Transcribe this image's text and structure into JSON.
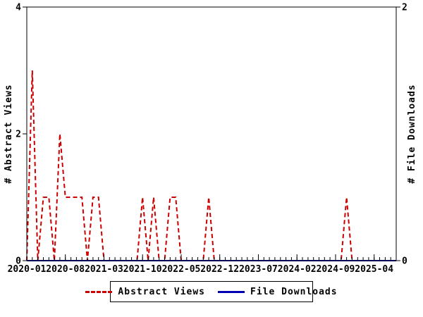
{
  "chart_data": {
    "type": "line",
    "title": "",
    "background": "#ffffff",
    "axis_color": "#000000",
    "x_axis": {
      "months_total": 68,
      "start_label": "2020-01",
      "labels": [
        {
          "label": "2020-01",
          "month": 0
        },
        {
          "label": "2020-08",
          "month": 7
        },
        {
          "label": "2021-03",
          "month": 14
        },
        {
          "label": "2021-10",
          "month": 21
        },
        {
          "label": "2022-05",
          "month": 28
        },
        {
          "label": "2022-12",
          "month": 35
        },
        {
          "label": "2023-07",
          "month": 42
        },
        {
          "label": "2024-02",
          "month": 49
        },
        {
          "label": "2024-09",
          "month": 56
        },
        {
          "label": "2025-04",
          "month": 63
        }
      ]
    },
    "left_axis": {
      "label": "# Abstract Views",
      "min": 0,
      "max": 4,
      "ticks": [
        {
          "label": "0",
          "value": 0
        },
        {
          "label": "2",
          "value": 2
        },
        {
          "label": "4",
          "value": 4
        }
      ]
    },
    "right_axis": {
      "label": "# File Downloads",
      "min": 0,
      "max": 2,
      "ticks": [
        {
          "label": "0",
          "value": 0
        },
        {
          "label": "2",
          "value": 2
        }
      ]
    },
    "series": [
      {
        "name": "Abstract Views",
        "color": "#cc0000",
        "style": "dashed",
        "axis": "left",
        "values": [
          0,
          3,
          0,
          1,
          1,
          0,
          2,
          1,
          1,
          1,
          1,
          0,
          1,
          1,
          0,
          0,
          0,
          0,
          0,
          0,
          0,
          1,
          0,
          1,
          0,
          0,
          1,
          1,
          0,
          0,
          0,
          0,
          0,
          1,
          0,
          0,
          0,
          0,
          0,
          0,
          0,
          0,
          0,
          0,
          0,
          0,
          0,
          0,
          0,
          0,
          0,
          0,
          0,
          0,
          0,
          0,
          0,
          0,
          1,
          0,
          0,
          0,
          0,
          0,
          0,
          0,
          0,
          0
        ]
      },
      {
        "name": "File Downloads",
        "color": "#0000b3",
        "style": "solid",
        "axis": "right",
        "values": [
          0,
          0,
          0,
          0,
          0,
          0,
          0,
          0,
          0,
          0,
          0,
          0,
          0,
          0,
          0,
          0,
          0,
          0,
          0,
          0,
          0,
          0,
          0,
          0,
          0,
          0,
          0,
          0,
          0,
          0,
          0,
          0,
          0,
          0,
          0,
          0,
          0,
          0,
          0,
          0,
          0,
          0,
          0,
          0,
          0,
          0,
          0,
          0,
          0,
          0,
          0,
          0,
          0,
          0,
          0,
          0,
          0,
          0,
          0,
          0,
          0,
          0,
          0,
          0,
          0,
          0,
          0,
          0
        ]
      }
    ],
    "legend": {
      "items": [
        {
          "label": "Abstract Views"
        },
        {
          "label": "File Downloads"
        }
      ]
    }
  }
}
